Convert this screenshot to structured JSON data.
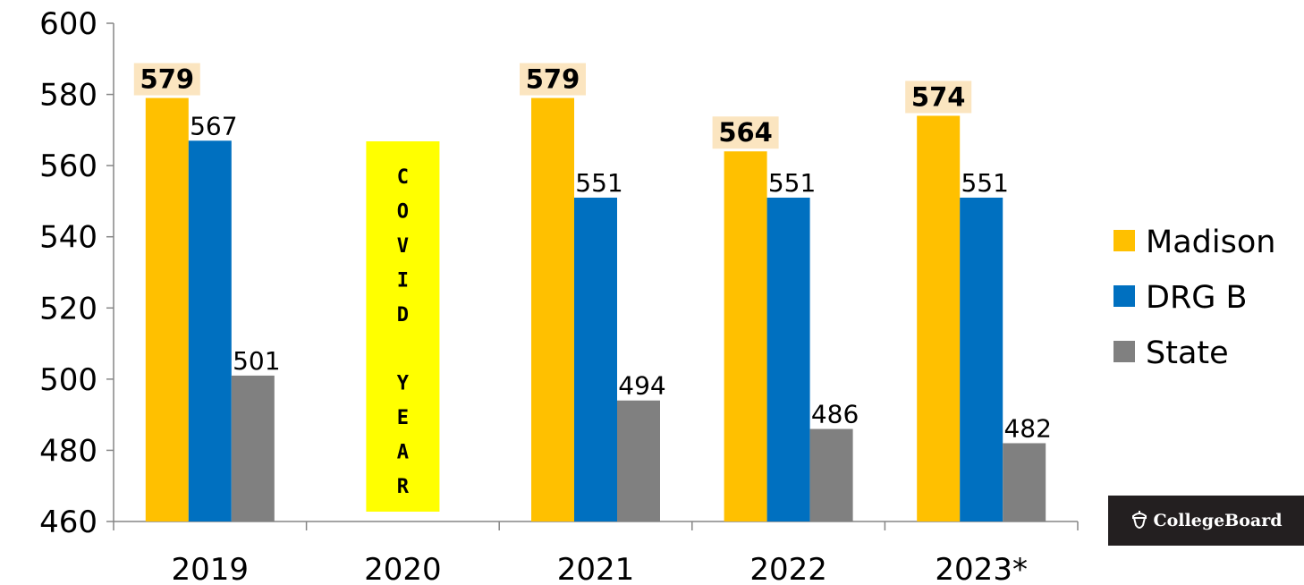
{
  "chart_data": {
    "type": "bar",
    "categories": [
      "2019",
      "2020",
      "2021",
      "2022",
      "2023*"
    ],
    "series": [
      {
        "name": "Madison",
        "color": "#ffc000",
        "values": [
          579,
          null,
          579,
          564,
          574
        ]
      },
      {
        "name": "DRG B",
        "color": "#0070c0",
        "values": [
          567,
          null,
          551,
          551,
          551
        ]
      },
      {
        "name": "State",
        "color": "#808080",
        "values": [
          501,
          null,
          494,
          486,
          482
        ]
      }
    ],
    "ylim": [
      460,
      600
    ],
    "yticks": [
      460,
      480,
      500,
      520,
      540,
      560,
      580,
      600
    ],
    "highlighted_series": "Madison",
    "highlight_color": "#fbe5c0",
    "annotation": {
      "category": "2020",
      "text": "COVID YEAR",
      "color": "#ffff00"
    },
    "legend_position": "right",
    "grid": false
  },
  "brand": {
    "text": "CollegeBoard",
    "icon": "acorn-icon"
  }
}
